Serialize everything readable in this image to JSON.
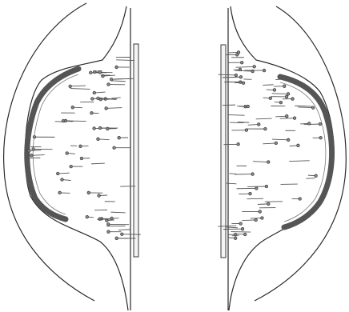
{
  "figure": {
    "panels": [
      {
        "id": "left",
        "label": ""
      },
      {
        "id": "right",
        "label": ""
      }
    ]
  }
}
